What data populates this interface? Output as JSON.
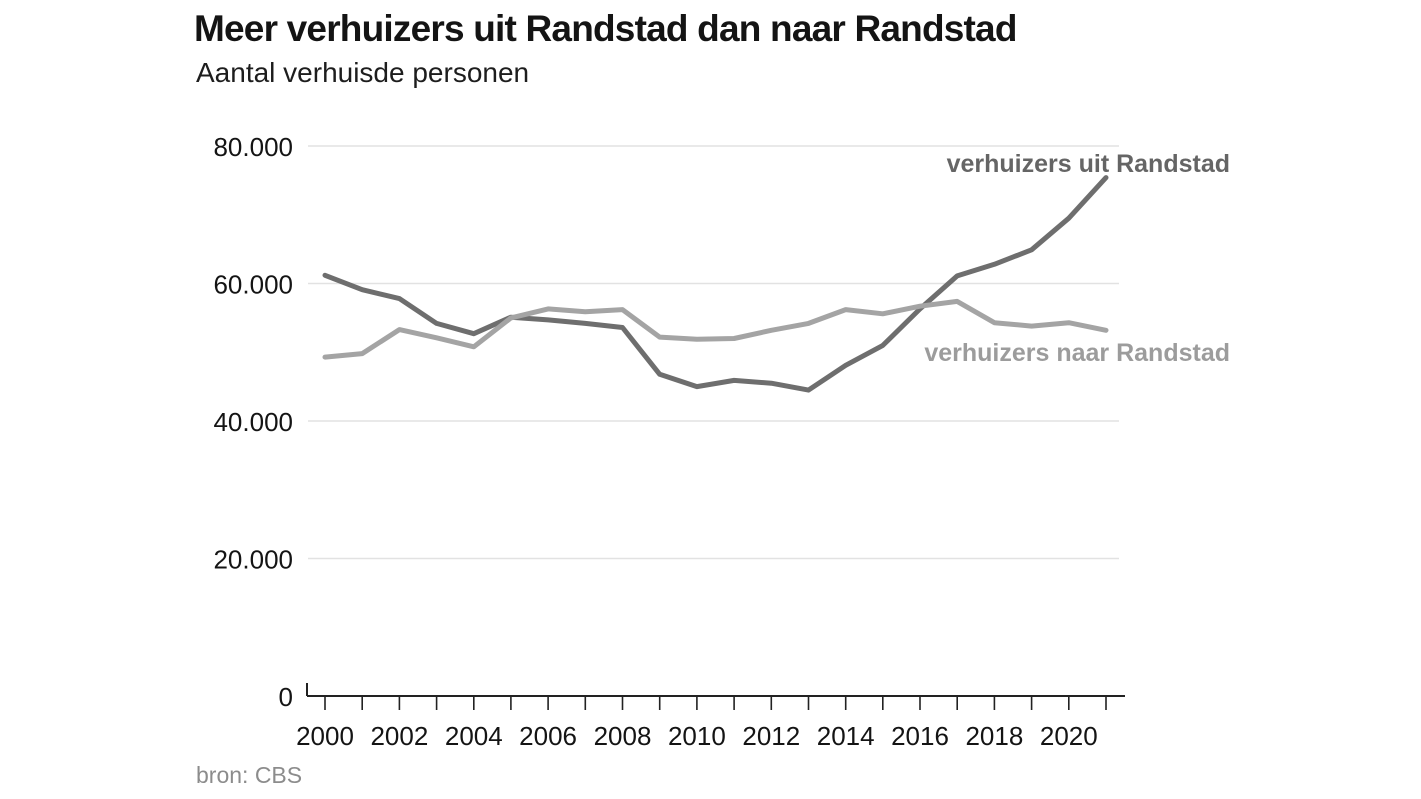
{
  "header": {
    "title": "Meer verhuizers uit Randstad dan naar Randstad",
    "subtitle": "Aantal verhuisde personen"
  },
  "footer": {
    "source": "bron: CBS"
  },
  "colors": {
    "background": "#ffffff",
    "uit_line": "#6e6e6e",
    "naar_line": "#a4a4a4",
    "uit_label": "#656565",
    "naar_label": "#9c9c9c",
    "grid": "#e2e2e2",
    "axis": "#222222",
    "axis_text": "#141414",
    "source_text": "#8c8c8c"
  },
  "chart_data": {
    "type": "line",
    "title": "Meer verhuizers uit Randstad dan naar Randstad",
    "subtitle": "Aantal verhuisde personen",
    "source": "bron: CBS",
    "x": [
      2000,
      2001,
      2002,
      2003,
      2004,
      2005,
      2006,
      2007,
      2008,
      2009,
      2010,
      2011,
      2012,
      2013,
      2014,
      2015,
      2016,
      2017,
      2018,
      2019,
      2020,
      2021
    ],
    "series": [
      {
        "name": "verhuizers uit Randstad",
        "color": "#6e6e6e",
        "label_color": "#656565",
        "values": [
          61200,
          59100,
          57800,
          54200,
          52700,
          55100,
          54700,
          54200,
          53600,
          46800,
          45000,
          45900,
          45500,
          44500,
          48100,
          51000,
          56300,
          61100,
          62800,
          64900,
          69500,
          75400
        ]
      },
      {
        "name": "verhuizers naar Randstad",
        "color": "#a4a4a4",
        "label_color": "#9c9c9c",
        "values": [
          49300,
          49800,
          53300,
          52100,
          50800,
          55000,
          56300,
          55900,
          56200,
          52200,
          51900,
          52000,
          53200,
          54200,
          56200,
          55600,
          56700,
          57400,
          54300,
          53800,
          54300,
          53200
        ]
      }
    ],
    "ylim": [
      0,
      80000
    ],
    "yticks": [
      0,
      20000,
      40000,
      60000,
      80000
    ],
    "ytick_labels": [
      "0",
      "20.000",
      "40.000",
      "60.000",
      "80.000"
    ],
    "xtick_years": [
      2000,
      2001,
      2002,
      2003,
      2004,
      2005,
      2006,
      2007,
      2008,
      2009,
      2010,
      2011,
      2012,
      2013,
      2014,
      2015,
      2016,
      2017,
      2018,
      2019,
      2020,
      2021
    ],
    "xtick_labels": [
      "2000",
      "2002",
      "2004",
      "2006",
      "2008",
      "2010",
      "2012",
      "2014",
      "2016",
      "2018",
      "2020"
    ],
    "grid": "horizontal",
    "legend_position": "inline-right"
  }
}
